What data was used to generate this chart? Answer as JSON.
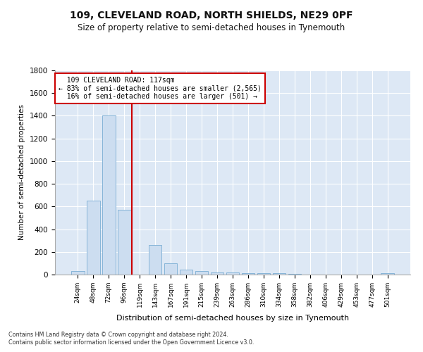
{
  "title": "109, CLEVELAND ROAD, NORTH SHIELDS, NE29 0PF",
  "subtitle": "Size of property relative to semi-detached houses in Tynemouth",
  "xlabel": "Distribution of semi-detached houses by size in Tynemouth",
  "ylabel": "Number of semi-detached properties",
  "bar_labels": [
    "24sqm",
    "48sqm",
    "72sqm",
    "96sqm",
    "119sqm",
    "143sqm",
    "167sqm",
    "191sqm",
    "215sqm",
    "239sqm",
    "263sqm",
    "286sqm",
    "310sqm",
    "334sqm",
    "358sqm",
    "382sqm",
    "406sqm",
    "429sqm",
    "453sqm",
    "477sqm",
    "501sqm"
  ],
  "bar_values": [
    30,
    650,
    1400,
    570,
    0,
    260,
    100,
    45,
    30,
    20,
    20,
    15,
    10,
    15,
    5,
    0,
    0,
    0,
    0,
    0,
    10
  ],
  "bar_color": "#ccddf0",
  "bar_edge_color": "#7aadd4",
  "property_line_x": 3.5,
  "property_label": "109 CLEVELAND ROAD: 117sqm",
  "pct_smaller": 83,
  "n_smaller": 2565,
  "pct_larger": 16,
  "n_larger": 501,
  "annotation_box_color": "#ffffff",
  "annotation_box_edge": "#cc0000",
  "line_color": "#cc0000",
  "ylim": [
    0,
    1800
  ],
  "yticks": [
    0,
    200,
    400,
    600,
    800,
    1000,
    1200,
    1400,
    1600,
    1800
  ],
  "footnote1": "Contains HM Land Registry data © Crown copyright and database right 2024.",
  "footnote2": "Contains public sector information licensed under the Open Government Licence v3.0.",
  "fig_bg_color": "#ffffff",
  "plot_bg_color": "#dde8f5"
}
